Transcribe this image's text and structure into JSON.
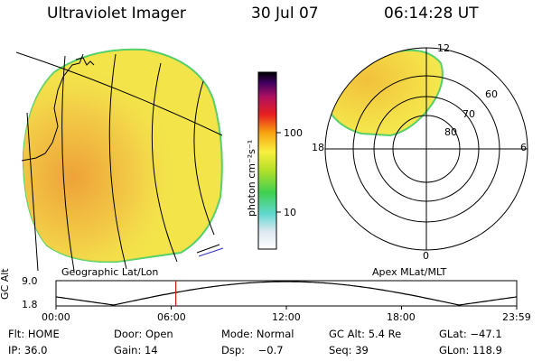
{
  "header": {
    "title": "Ultraviolet Imager",
    "date": "30 Jul 07",
    "time": "06:14:28 UT"
  },
  "colorbar": {
    "unit_label": "photon cm⁻²s⁻¹",
    "ticks": [
      "100",
      "10"
    ]
  },
  "polar": {
    "mlt_labels": {
      "top": "12",
      "left": "18",
      "right": "6",
      "bottom": "0"
    },
    "lat_labels": [
      "80",
      "70",
      "60"
    ]
  },
  "panel_labels": {
    "geographic": "Geographic Lat/Lon",
    "apex": "Apex MLat/MLT"
  },
  "altitude_plot": {
    "axis_title": "GC Alt",
    "y_ticks": [
      "9.0",
      "1.8"
    ],
    "x_ticks": [
      "00:00",
      "06:00",
      "12:00",
      "18:00",
      "23:59"
    ],
    "current_hour": 6.24
  },
  "info": {
    "row1": {
      "flt": "Flt: HOME",
      "door": "Door: Open",
      "mode": "Mode: Normal",
      "gcalt": "GC Alt: 5.4 Re",
      "glat": "GLat: −47.1"
    },
    "row2": {
      "ip": "IP: 36.0",
      "gain": "Gain: 14",
      "dsp": "Dsp:    −0.7",
      "seq": "Seq: 39",
      "glon": "GLon: 118.9"
    }
  },
  "colors": {
    "image_fill": "#f2e64a",
    "image_orange": "#f0b43a",
    "image_edge": "#55d06a",
    "marker": "#d02020",
    "cut_line": "#3030c0"
  }
}
